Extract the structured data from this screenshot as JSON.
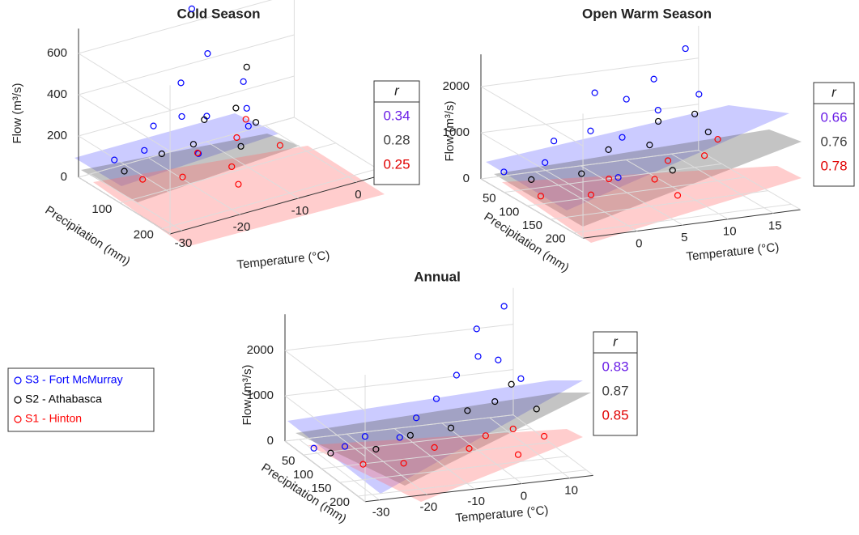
{
  "legend": [
    {
      "name": "S3 - Fort McMurray",
      "color": "#0000ff"
    },
    {
      "name": "S2 - Athabasca",
      "color": "#000000"
    },
    {
      "name": "S1 - Hinton",
      "color": "#ff0000"
    }
  ],
  "chart_data": [
    {
      "type": "scatter3d",
      "title": "Cold Season",
      "xlabel": "Temperature (°C)",
      "ylabel": "Precipitation (mm)",
      "zlabel": "Flow (m³/s)",
      "xlim": [
        -32,
        5
      ],
      "ylim": [
        0,
        220
      ],
      "zlim": [
        0,
        720
      ],
      "xticks": [
        -30,
        -20,
        -10,
        0
      ],
      "yticks": [
        100,
        200
      ],
      "zticks": [
        0,
        200,
        400,
        600
      ],
      "r_header": "r",
      "r_values": [
        0.34,
        0.28,
        0.25
      ],
      "r_colors": [
        "#6a1ee6",
        "#404040",
        "#e00000"
      ],
      "series": [
        {
          "color": "#0000ff",
          "x": [
            -28,
            -25,
            -22,
            -20,
            -18,
            -15,
            -12,
            -10,
            -8,
            -14,
            -6,
            -20
          ],
          "y": [
            30,
            60,
            40,
            80,
            50,
            70,
            30,
            100,
            60,
            20,
            40,
            120
          ],
          "z": [
            90,
            150,
            220,
            300,
            410,
            250,
            480,
            200,
            350,
            700,
            180,
            170
          ]
        },
        {
          "color": "#000000",
          "x": [
            -27,
            -22,
            -18,
            -14,
            -10,
            -6,
            -12,
            -8
          ],
          "y": [
            40,
            60,
            80,
            50,
            70,
            40,
            110,
            90
          ],
          "z": [
            40,
            110,
            150,
            200,
            250,
            380,
            130,
            190
          ]
        },
        {
          "color": "#ff0000",
          "x": [
            -26,
            -22,
            -18,
            -15,
            -12,
            -9,
            -6,
            -16
          ],
          "y": [
            70,
            110,
            90,
            130,
            100,
            80,
            120,
            160
          ],
          "z": [
            30,
            60,
            120,
            80,
            160,
            200,
            100,
            40
          ]
        }
      ]
    },
    {
      "type": "scatter3d",
      "title": "Open Warm Season",
      "xlabel": "Temperature (°C)",
      "ylabel": "Precipitation (mm)",
      "zlabel": "Flow (m³/s)",
      "xlim": [
        -6,
        18
      ],
      "ylim": [
        0,
        220
      ],
      "zlim": [
        0,
        2700
      ],
      "xticks": [
        0,
        5,
        10,
        15
      ],
      "yticks": [
        50,
        100,
        150,
        200
      ],
      "zticks": [
        0,
        1000,
        2000
      ],
      "r_header": "r",
      "r_values": [
        0.66,
        0.76,
        0.78
      ],
      "r_colors": [
        "#6a1ee6",
        "#404040",
        "#e00000"
      ],
      "series": [
        {
          "color": "#0000ff",
          "x": [
            -5,
            -2,
            0,
            2,
            4,
            6,
            8,
            10,
            12,
            14,
            16,
            3
          ],
          "y": [
            30,
            60,
            40,
            80,
            50,
            70,
            40,
            60,
            30,
            50,
            40,
            120
          ],
          "z": [
            300,
            600,
            900,
            1300,
            1900,
            1000,
            1600,
            2100,
            1200,
            2600,
            1500,
            500
          ]
        },
        {
          "color": "#000000",
          "x": [
            -3,
            1,
            5,
            8,
            11,
            14,
            16,
            9
          ],
          "y": [
            50,
            80,
            60,
            90,
            50,
            70,
            60,
            120
          ],
          "z": [
            200,
            400,
            700,
            900,
            1100,
            1300,
            800,
            500
          ]
        },
        {
          "color": "#ff0000",
          "x": [
            -4,
            0,
            3,
            6,
            9,
            12,
            15,
            7
          ],
          "y": [
            90,
            120,
            100,
            140,
            110,
            130,
            100,
            170
          ],
          "z": [
            100,
            200,
            350,
            500,
            650,
            800,
            900,
            300
          ]
        }
      ]
    },
    {
      "type": "scatter3d",
      "title": "Annual",
      "xlabel": "Temperature (°C)",
      "ylabel": "Precipitation (mm)",
      "zlabel": "Flow (m³/s)",
      "xlim": [
        -33,
        15
      ],
      "ylim": [
        0,
        220
      ],
      "zlim": [
        0,
        2800
      ],
      "xticks": [
        -30,
        -20,
        -10,
        0,
        10
      ],
      "yticks": [
        50,
        100,
        150,
        200
      ],
      "zticks": [
        0,
        1000,
        2000
      ],
      "r_header": "r",
      "r_values": [
        0.83,
        0.87,
        0.85
      ],
      "r_colors": [
        "#6a1ee6",
        "#404040",
        "#e00000"
      ],
      "series": [
        {
          "color": "#0000ff",
          "x": [
            -30,
            -25,
            -20,
            -15,
            -10,
            -5,
            0,
            3,
            5,
            8,
            10,
            12
          ],
          "y": [
            40,
            60,
            50,
            80,
            60,
            50,
            40,
            60,
            30,
            50,
            40,
            60
          ],
          "z": [
            50,
            150,
            250,
            350,
            600,
            900,
            1300,
            1800,
            2200,
            1600,
            2700,
            1200
          ]
        },
        {
          "color": "#000000",
          "x": [
            -28,
            -20,
            -12,
            -5,
            0,
            5,
            10,
            13
          ],
          "y": [
            60,
            80,
            70,
            90,
            70,
            80,
            60,
            90
          ],
          "z": [
            40,
            150,
            300,
            500,
            700,
            900,
            1100,
            700
          ]
        },
        {
          "color": "#ff0000",
          "x": [
            -25,
            -18,
            -10,
            -5,
            0,
            5,
            10,
            3
          ],
          "y": [
            110,
            130,
            110,
            140,
            120,
            130,
            150,
            170
          ],
          "z": [
            60,
            120,
            250,
            350,
            450,
            600,
            500,
            300
          ]
        }
      ]
    }
  ]
}
